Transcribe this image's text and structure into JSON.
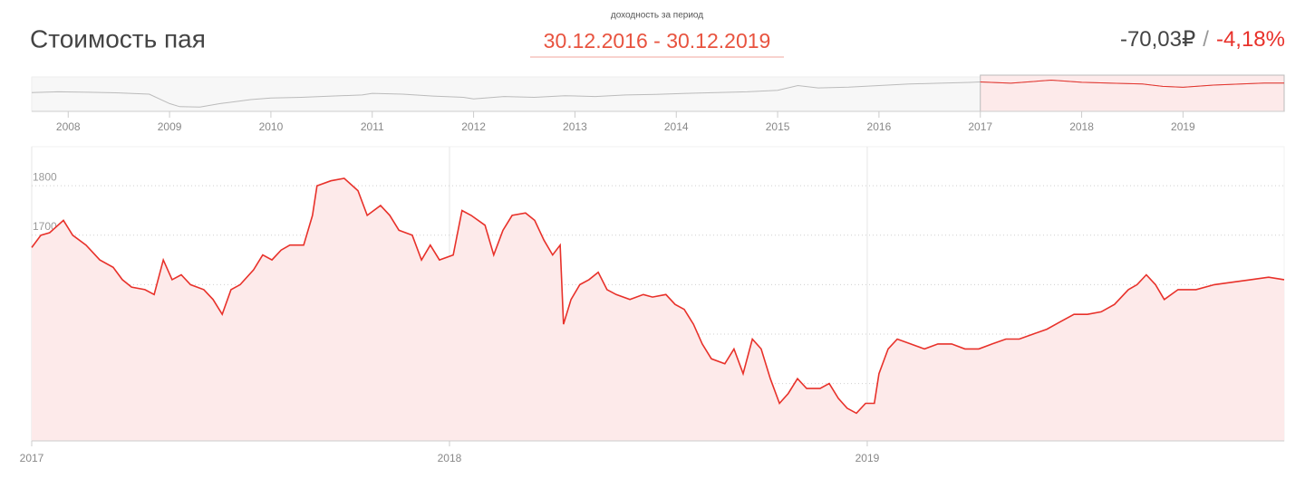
{
  "header": {
    "title": "Стоимость пая",
    "period_label": "доходность за период",
    "period": "30.12.2016 - 30.12.2019",
    "change_value": "-70,03₽",
    "separator": "/",
    "change_percent": "-4,18%"
  },
  "chart_data": [
    {
      "type": "line",
      "color": "#e8312a",
      "area_color": "#fdeaea",
      "grid": true,
      "xlim": [
        2017,
        2019.998
      ],
      "xticks": [
        2017,
        2018,
        2019
      ],
      "ylim": [
        1284,
        1879
      ],
      "yticks": [
        1300,
        1400,
        1500,
        1600,
        1700,
        1800
      ],
      "x": [
        2017.0,
        2017.022,
        2017.043,
        2017.076,
        2017.098,
        2017.13,
        2017.163,
        2017.195,
        2017.217,
        2017.239,
        2017.271,
        2017.293,
        2017.315,
        2017.336,
        2017.358,
        2017.38,
        2017.412,
        2017.434,
        2017.456,
        2017.477,
        2017.499,
        2017.531,
        2017.553,
        2017.575,
        2017.597,
        2017.618,
        2017.651,
        2017.672,
        2017.683,
        2017.716,
        2017.748,
        2017.781,
        2017.803,
        2017.835,
        2017.857,
        2017.879,
        2017.911,
        2017.933,
        2017.954,
        2017.976,
        2018.009,
        2018.03,
        2018.052,
        2018.085,
        2018.106,
        2018.128,
        2018.15,
        2018.182,
        2018.204,
        2018.226,
        2018.247,
        2018.265,
        2018.273,
        2018.291,
        2018.312,
        2018.334,
        2018.356,
        2018.377,
        2018.399,
        2018.432,
        2018.464,
        2018.486,
        2018.518,
        2018.54,
        2018.562,
        2018.584,
        2018.605,
        2018.627,
        2018.659,
        2018.681,
        2018.703,
        2018.725,
        2018.746,
        2018.768,
        2018.79,
        2018.811,
        2018.833,
        2018.855,
        2018.887,
        2018.909,
        2018.931,
        2018.952,
        2018.974,
        2018.996,
        2019.017,
        2019.028,
        2019.05,
        2019.072,
        2019.104,
        2019.137,
        2019.169,
        2019.202,
        2019.234,
        2019.267,
        2019.299,
        2019.332,
        2019.364,
        2019.397,
        2019.43,
        2019.462,
        2019.495,
        2019.527,
        2019.56,
        2019.592,
        2019.625,
        2019.646,
        2019.668,
        2019.69,
        2019.711,
        2019.744,
        2019.787,
        2019.831,
        2019.874,
        2019.918,
        2019.961,
        2019.998
      ],
      "series": [
        {
          "values": [
            1675,
            1700,
            1705,
            1730,
            1700,
            1680,
            1650,
            1635,
            1610,
            1595,
            1590,
            1580,
            1650,
            1610,
            1620,
            1600,
            1590,
            1570,
            1540,
            1590,
            1600,
            1630,
            1660,
            1650,
            1670,
            1680,
            1680,
            1740,
            1800,
            1810,
            1815,
            1790,
            1740,
            1760,
            1740,
            1710,
            1700,
            1650,
            1680,
            1650,
            1660,
            1750,
            1740,
            1720,
            1660,
            1710,
            1740,
            1745,
            1730,
            1690,
            1660,
            1680,
            1520,
            1570,
            1600,
            1610,
            1625,
            1590,
            1580,
            1570,
            1580,
            1575,
            1580,
            1560,
            1550,
            1520,
            1480,
            1450,
            1440,
            1470,
            1420,
            1490,
            1470,
            1410,
            1360,
            1380,
            1410,
            1390,
            1390,
            1400,
            1370,
            1350,
            1340,
            1360,
            1360,
            1420,
            1470,
            1490,
            1480,
            1470,
            1480,
            1480,
            1470,
            1470,
            1480,
            1490,
            1490,
            1500,
            1510,
            1525,
            1540,
            1540,
            1545,
            1560,
            1590,
            1600,
            1620,
            1600,
            1570,
            1590,
            1590,
            1600,
            1605,
            1610,
            1615,
            1610
          ]
        }
      ]
    },
    {
      "type": "navigator",
      "color": "#bbbbbb",
      "highlight_color": "#e8312a",
      "xlim": [
        2007.64,
        2019.998
      ],
      "xticks": [
        2008,
        2009,
        2010,
        2011,
        2012,
        2013,
        2014,
        2015,
        2016,
        2017,
        2018,
        2019
      ],
      "ylim": [
        -200,
        2000
      ],
      "x": [
        2007.64,
        2007.9,
        2008.2,
        2008.5,
        2008.8,
        2009.0,
        2009.1,
        2009.3,
        2009.5,
        2009.8,
        2010.0,
        2010.3,
        2010.6,
        2010.9,
        2011.0,
        2011.3,
        2011.6,
        2011.9,
        2012.0,
        2012.3,
        2012.6,
        2012.9,
        2013.2,
        2013.5,
        2013.8,
        2014.1,
        2014.4,
        2014.7,
        2015.0,
        2015.2,
        2015.4,
        2015.7,
        2016.0,
        2016.3,
        2016.6,
        2016.9,
        2017.0,
        2017.3,
        2017.7,
        2018.0,
        2018.3,
        2018.6,
        2018.8,
        2019.0,
        2019.3,
        2019.6,
        2019.8,
        2019.998
      ],
      "series": [
        {
          "values": [
            1000,
            1050,
            1020,
            980,
            900,
            300,
            100,
            80,
            300,
            550,
            650,
            700,
            780,
            850,
            950,
            900,
            780,
            700,
            600,
            750,
            700,
            800,
            750,
            850,
            880,
            950,
            1000,
            1050,
            1150,
            1450,
            1300,
            1350,
            1450,
            1550,
            1600,
            1650,
            1680,
            1600,
            1800,
            1660,
            1600,
            1550,
            1400,
            1340,
            1480,
            1560,
            1610,
            1610
          ]
        }
      ]
    }
  ]
}
